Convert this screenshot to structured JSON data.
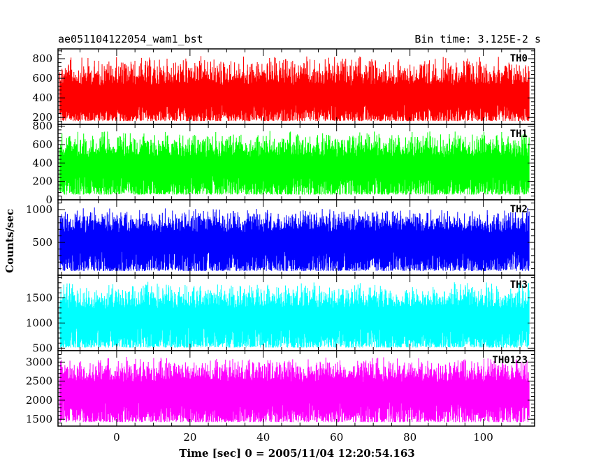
{
  "chart_data": {
    "type": "line",
    "title": "ae051104122054_wam1_bst",
    "subtitle": "Bin time: 3.125E-2 s",
    "xlabel": "Time [sec] 0 = 2005/11/04 12:20:54.163",
    "ylabel": "Counts/sec",
    "xlim": [
      -16,
      114
    ],
    "x_start": -15.5,
    "x_end": 112.5,
    "x_ticks": [
      0,
      20,
      40,
      60,
      80,
      100
    ],
    "panels": [
      {
        "name": "TH0",
        "color": "#ff0000",
        "ylim": [
          130,
          900
        ],
        "y_ticks": [
          200,
          400,
          600,
          800
        ],
        "mean": 430,
        "low": 150,
        "high": 880
      },
      {
        "name": "TH1",
        "color": "#00ff00",
        "ylim": [
          0,
          820
        ],
        "y_ticks": [
          0,
          200,
          400,
          600,
          800
        ],
        "mean": 380,
        "low": 40,
        "high": 800
      },
      {
        "name": "TH2",
        "color": "#0000ff",
        "ylim": [
          0,
          1150
        ],
        "y_ticks": [
          500,
          1000
        ],
        "mean": 540,
        "low": 40,
        "high": 1100
      },
      {
        "name": "TH3",
        "color": "#00ffff",
        "ylim": [
          450,
          1950
        ],
        "y_ticks": [
          500,
          1000,
          1500
        ],
        "mean": 1130,
        "low": 480,
        "high": 1900
      },
      {
        "name": "TH0123",
        "color": "#ff00ff",
        "ylim": [
          1320,
          3300
        ],
        "y_ticks": [
          1500,
          2000,
          2500,
          3000
        ],
        "mean": 2280,
        "low": 1380,
        "high": 3250
      }
    ]
  }
}
